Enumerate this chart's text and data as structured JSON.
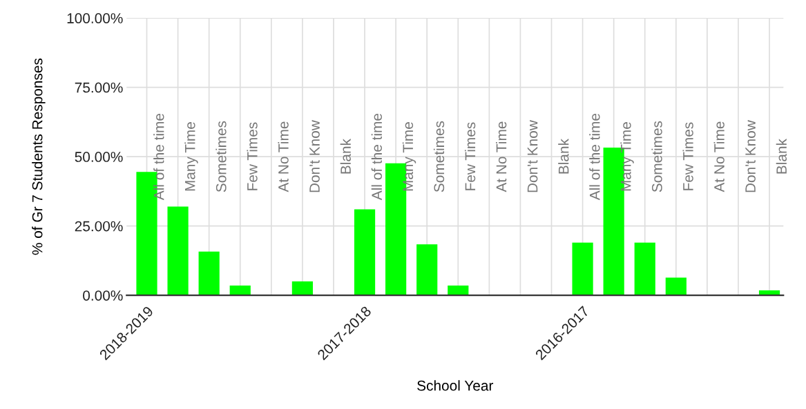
{
  "chart_data": {
    "type": "bar",
    "xlabel": "School Year",
    "ylabel": "% of Gr 7 Students Responses",
    "categories": [
      "2018-2019",
      null,
      null,
      null,
      null,
      null,
      null,
      "2017-2018",
      null,
      null,
      null,
      null,
      null,
      null,
      "2016-2017",
      null,
      null,
      null,
      null,
      null,
      null
    ],
    "values": [
      44.5,
      32,
      15.75,
      3.5,
      0,
      5,
      0,
      31,
      47.6,
      18.4,
      3.5,
      0,
      0,
      0,
      19,
      53.25,
      19,
      6.4,
      0,
      0,
      1.75
    ],
    "color": "#00ff00",
    "annotations": [
      "All of the time",
      "Many Time",
      "Sometimes",
      "Few Times",
      "At No Time",
      "Don't Know",
      "Blank",
      "All of the time",
      "Many Time",
      "Sometimes",
      "Few Times",
      "At No Time",
      "Don't Know",
      "Blank",
      "All of the time",
      "Many Time",
      "Sometimes",
      "Few Times",
      "At No Time",
      "Don't Know",
      "Blank"
    ],
    "ylim": [
      0,
      100
    ],
    "yticks": [
      {
        "value": 0,
        "label": "0.00%"
      },
      {
        "value": 25,
        "label": "25.00%"
      },
      {
        "value": 50,
        "label": "50.00%"
      },
      {
        "value": 75,
        "label": "75.00%"
      },
      {
        "value": 100,
        "label": "100.00%"
      }
    ],
    "grid": true
  }
}
